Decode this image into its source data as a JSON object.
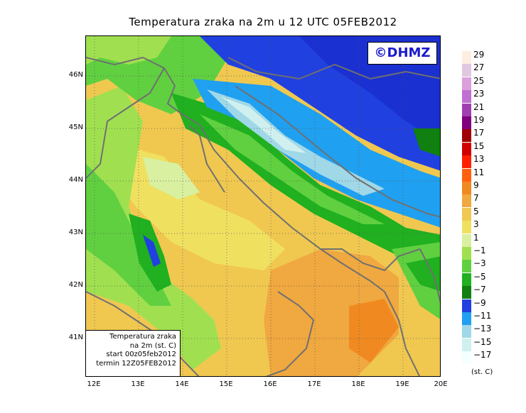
{
  "title": "Temperatura zraka na 2m u 12 UTC 05FEB2012",
  "logo_text": "©DHMZ",
  "lat_labels": [
    "46N",
    "45N",
    "44N",
    "43N",
    "42N",
    "41N"
  ],
  "lon_labels": [
    "12E",
    "13E",
    "14E",
    "15E",
    "16E",
    "17E",
    "18E",
    "19E",
    "20E"
  ],
  "info_box": {
    "line1": "Temperatura zraka",
    "line2": "na 2m (st. C)",
    "line3": "start 00z05feb2012",
    "line4": "termin 12Z05FEB2012"
  },
  "legend": {
    "unit": "(st. C)",
    "levels": [
      "29",
      "27",
      "25",
      "23",
      "21",
      "19",
      "17",
      "15",
      "13",
      "11",
      "9",
      "7",
      "5",
      "3",
      "1",
      "−1",
      "−3",
      "−5",
      "−7",
      "−9",
      "−11",
      "−13",
      "−15",
      "−17"
    ],
    "colors": [
      "#fdeee0",
      "#e0c8e0",
      "#dca0dc",
      "#c070d0",
      "#a040b0",
      "#800080",
      "#a00000",
      "#d00000",
      "#ff2000",
      "#ff6010",
      "#f08a20",
      "#f0a840",
      "#f0c850",
      "#f0e060",
      "#d8f0a0",
      "#a0e050",
      "#60d040",
      "#20b020",
      "#108010",
      "#2040e0",
      "#20a0f0",
      "#a0d8e8",
      "#d0f0f0",
      "#f4ffff"
    ]
  },
  "map": {
    "region": "Adriatic Sea and Croatia",
    "field": "2m air temperature",
    "grid": "dotted"
  }
}
